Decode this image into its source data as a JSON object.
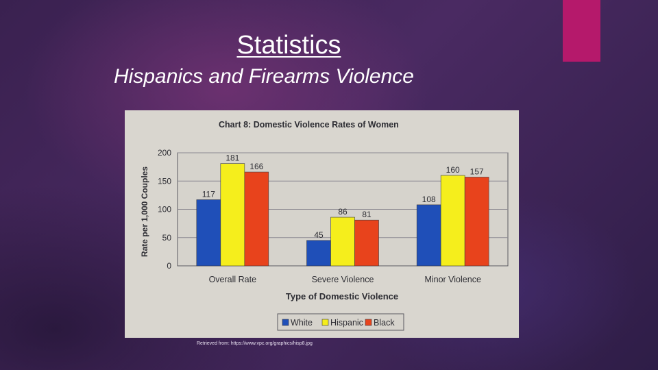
{
  "slide": {
    "title": "Statistics",
    "subtitle": "Hispanics and Firearms Violence",
    "caption": "Retrieved from: https://www.vpc.org/graphics/hisp8.jpg",
    "accent_color": "#b5196b"
  },
  "chart_data": {
    "type": "bar",
    "title": "Chart 8:  Domestic Violence Rates of Women",
    "xlabel": "Type of Domestic Violence",
    "ylabel": "Rate per 1,000 Couples",
    "ylim": [
      0,
      200
    ],
    "yticks": [
      "0",
      "50",
      "100",
      "150",
      "200"
    ],
    "categories": [
      "Overall Rate",
      "Severe Violence",
      "Minor Violence"
    ],
    "series": [
      {
        "name": "White",
        "values": [
          117,
          45,
          108
        ],
        "color": "#1f4fb8"
      },
      {
        "name": "Hispanic",
        "values": [
          181,
          86,
          160
        ],
        "color": "#f5ee1c"
      },
      {
        "name": "Black",
        "values": [
          166,
          81,
          157
        ],
        "color": "#e8431c"
      }
    ],
    "grid": true,
    "legend_position": "bottom"
  }
}
